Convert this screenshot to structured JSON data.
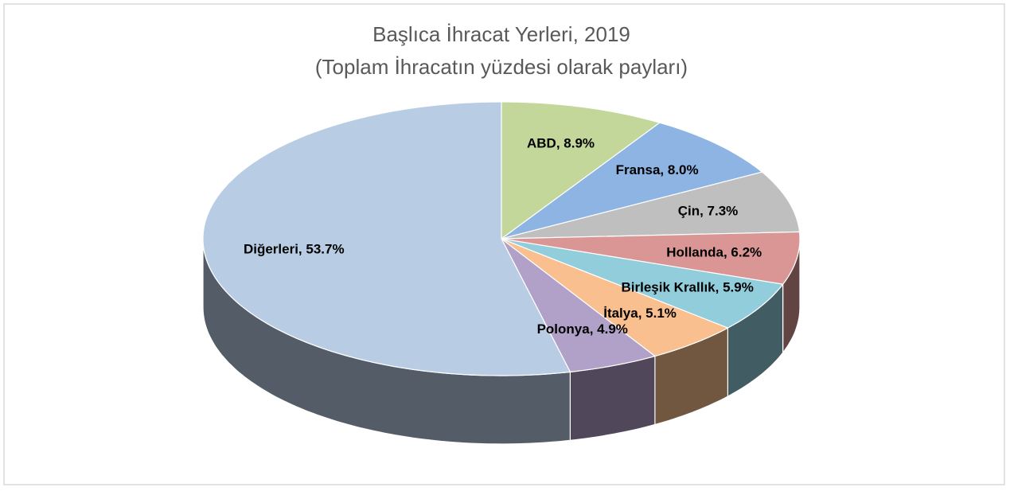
{
  "chart_data": {
    "type": "pie",
    "title": "Başlıca İhracat Yerleri, 2019",
    "subtitle": "(Toplam İhracatın yüzdesi olarak payları)",
    "categories": [
      "ABD",
      "Fransa",
      "Çin",
      "Hollanda",
      "Birleşik Krallık",
      "İtalya",
      "Polonya",
      "Diğerleri"
    ],
    "values": [
      8.9,
      8.0,
      7.3,
      6.2,
      5.9,
      5.1,
      4.9,
      53.7
    ],
    "value_labels": [
      "ABD, 8.9%",
      "Fransa, 8.0%",
      "Çin, 7.3%",
      "Hollanda, 6.2%",
      "Birleşik Krallık, 5.9%",
      "İtalya, 5.1%",
      "Polonya, 4.9%",
      "Diğerleri, 53.7%"
    ],
    "colors": [
      "#c4d79b",
      "#8db4e2",
      "#bfbfbf",
      "#da9694",
      "#92cddc",
      "#fabf8f",
      "#b1a0c7",
      "#b8cce4"
    ]
  }
}
